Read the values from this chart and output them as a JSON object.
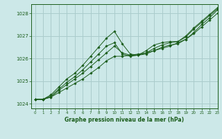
{
  "title": "Graphe pression niveau de la mer (hPa)",
  "background_color": "#cce8e8",
  "grid_color": "#aacccc",
  "line_color": "#1a5c1a",
  "marker_color": "#1a5c1a",
  "xlim": [
    -0.5,
    23
  ],
  "ylim": [
    1023.8,
    1028.4
  ],
  "yticks": [
    1024,
    1025,
    1026,
    1027,
    1028
  ],
  "xticks": [
    0,
    1,
    2,
    3,
    4,
    5,
    6,
    7,
    8,
    9,
    10,
    11,
    12,
    13,
    14,
    15,
    16,
    17,
    18,
    19,
    20,
    21,
    22,
    23
  ],
  "series": [
    [
      1024.2,
      1024.2,
      1024.3,
      1024.5,
      1024.7,
      1024.9,
      1025.1,
      1025.35,
      1025.6,
      1025.9,
      1026.1,
      1026.1,
      1026.15,
      1026.2,
      1026.25,
      1026.35,
      1026.45,
      1026.55,
      1026.7,
      1026.85,
      1027.1,
      1027.4,
      1027.7,
      1028.0
    ],
    [
      1024.2,
      1024.2,
      1024.3,
      1024.6,
      1024.85,
      1025.1,
      1025.35,
      1025.65,
      1025.95,
      1026.25,
      1026.55,
      1026.25,
      1026.15,
      1026.15,
      1026.2,
      1026.35,
      1026.5,
      1026.6,
      1026.65,
      1026.85,
      1027.15,
      1027.5,
      1027.8,
      1028.15
    ],
    [
      1024.2,
      1024.2,
      1024.35,
      1024.65,
      1024.95,
      1025.2,
      1025.5,
      1025.85,
      1026.2,
      1026.55,
      1026.7,
      1026.2,
      1026.1,
      1026.15,
      1026.25,
      1026.45,
      1026.6,
      1026.7,
      1026.75,
      1026.95,
      1027.3,
      1027.6,
      1027.9,
      1028.2
    ],
    [
      1024.2,
      1024.2,
      1024.4,
      1024.75,
      1025.1,
      1025.35,
      1025.7,
      1026.1,
      1026.5,
      1026.9,
      1027.2,
      1026.65,
      1026.2,
      1026.15,
      1026.35,
      1026.6,
      1026.7,
      1026.75,
      1026.75,
      1027.0,
      1027.35,
      1027.65,
      1027.95,
      1028.25
    ]
  ]
}
